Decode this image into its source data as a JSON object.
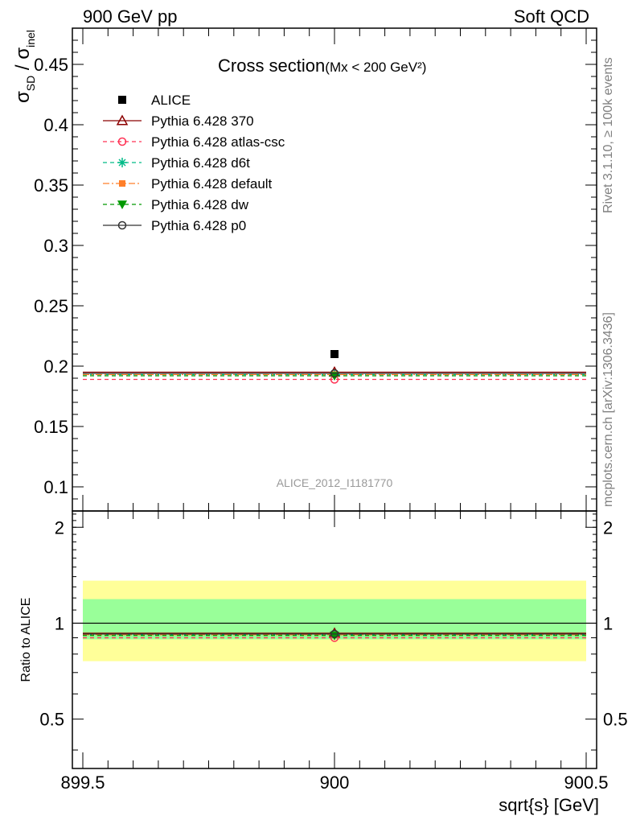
{
  "header": {
    "left": "900 GeV pp",
    "right": "Soft QCD",
    "side_top": "Rivet 3.1.10, ≥ 100k events",
    "side_bottom": "mcplots.cern.ch [arXiv:1306.3436]"
  },
  "chart_data": {
    "type": "scatter",
    "title": "Cross section",
    "title_suffix": "(Mx < 200 GeV²)",
    "analysis_label": "ALICE_2012_I1181770",
    "ylabel_main": "σSD / σinel",
    "ylabel_ratio": "Ratio to ALICE",
    "xlabel": "sqrt{s} [GeV]",
    "xlim": [
      899.5,
      900.5
    ],
    "ylim_main": [
      0.08,
      0.48
    ],
    "ylim_ratio": [
      0.35,
      2.25
    ],
    "x_ticks": [
      "899.5",
      "900",
      "900.5"
    ],
    "y_ticks_main": [
      "0.1",
      "0.15",
      "0.2",
      "0.25",
      "0.3",
      "0.35",
      "0.4",
      "0.45"
    ],
    "y_ticks_ratio": [
      "0.5",
      "1",
      "2"
    ],
    "bin": [
      899.5,
      900.5
    ],
    "data": {
      "name": "ALICE",
      "x": 900,
      "y": 0.21,
      "band_inner": [
        0.89,
        1.19
      ],
      "band_outer": [
        0.76,
        1.36
      ]
    },
    "series": [
      {
        "name": "Pythia 6.428 370",
        "y": 0.195,
        "ratio": 0.93,
        "color": "#8b0000",
        "dash": "",
        "marker": "triangle-open"
      },
      {
        "name": "Pythia 6.428 atlas-csc",
        "y": 0.189,
        "ratio": 0.9,
        "color": "#ff3355",
        "dash": "5,4",
        "marker": "circle-open"
      },
      {
        "name": "Pythia 6.428 d6t",
        "y": 0.193,
        "ratio": 0.92,
        "color": "#00bb88",
        "dash": "5,4",
        "marker": "star"
      },
      {
        "name": "Pythia 6.428 default",
        "y": 0.193,
        "ratio": 0.92,
        "color": "#ff7f2a",
        "dash": "8,3,2,3",
        "marker": "square-filled"
      },
      {
        "name": "Pythia 6.428 dw",
        "y": 0.192,
        "ratio": 0.915,
        "color": "#009900",
        "dash": "5,4",
        "marker": "triangle-down-filled"
      },
      {
        "name": "Pythia 6.428 p0",
        "y": 0.194,
        "ratio": 0.925,
        "color": "#333333",
        "dash": "",
        "marker": "circle-open"
      }
    ],
    "colors": {
      "band_inner": "#99ff99",
      "band_outer": "#ffff99",
      "data": "#000000"
    }
  }
}
